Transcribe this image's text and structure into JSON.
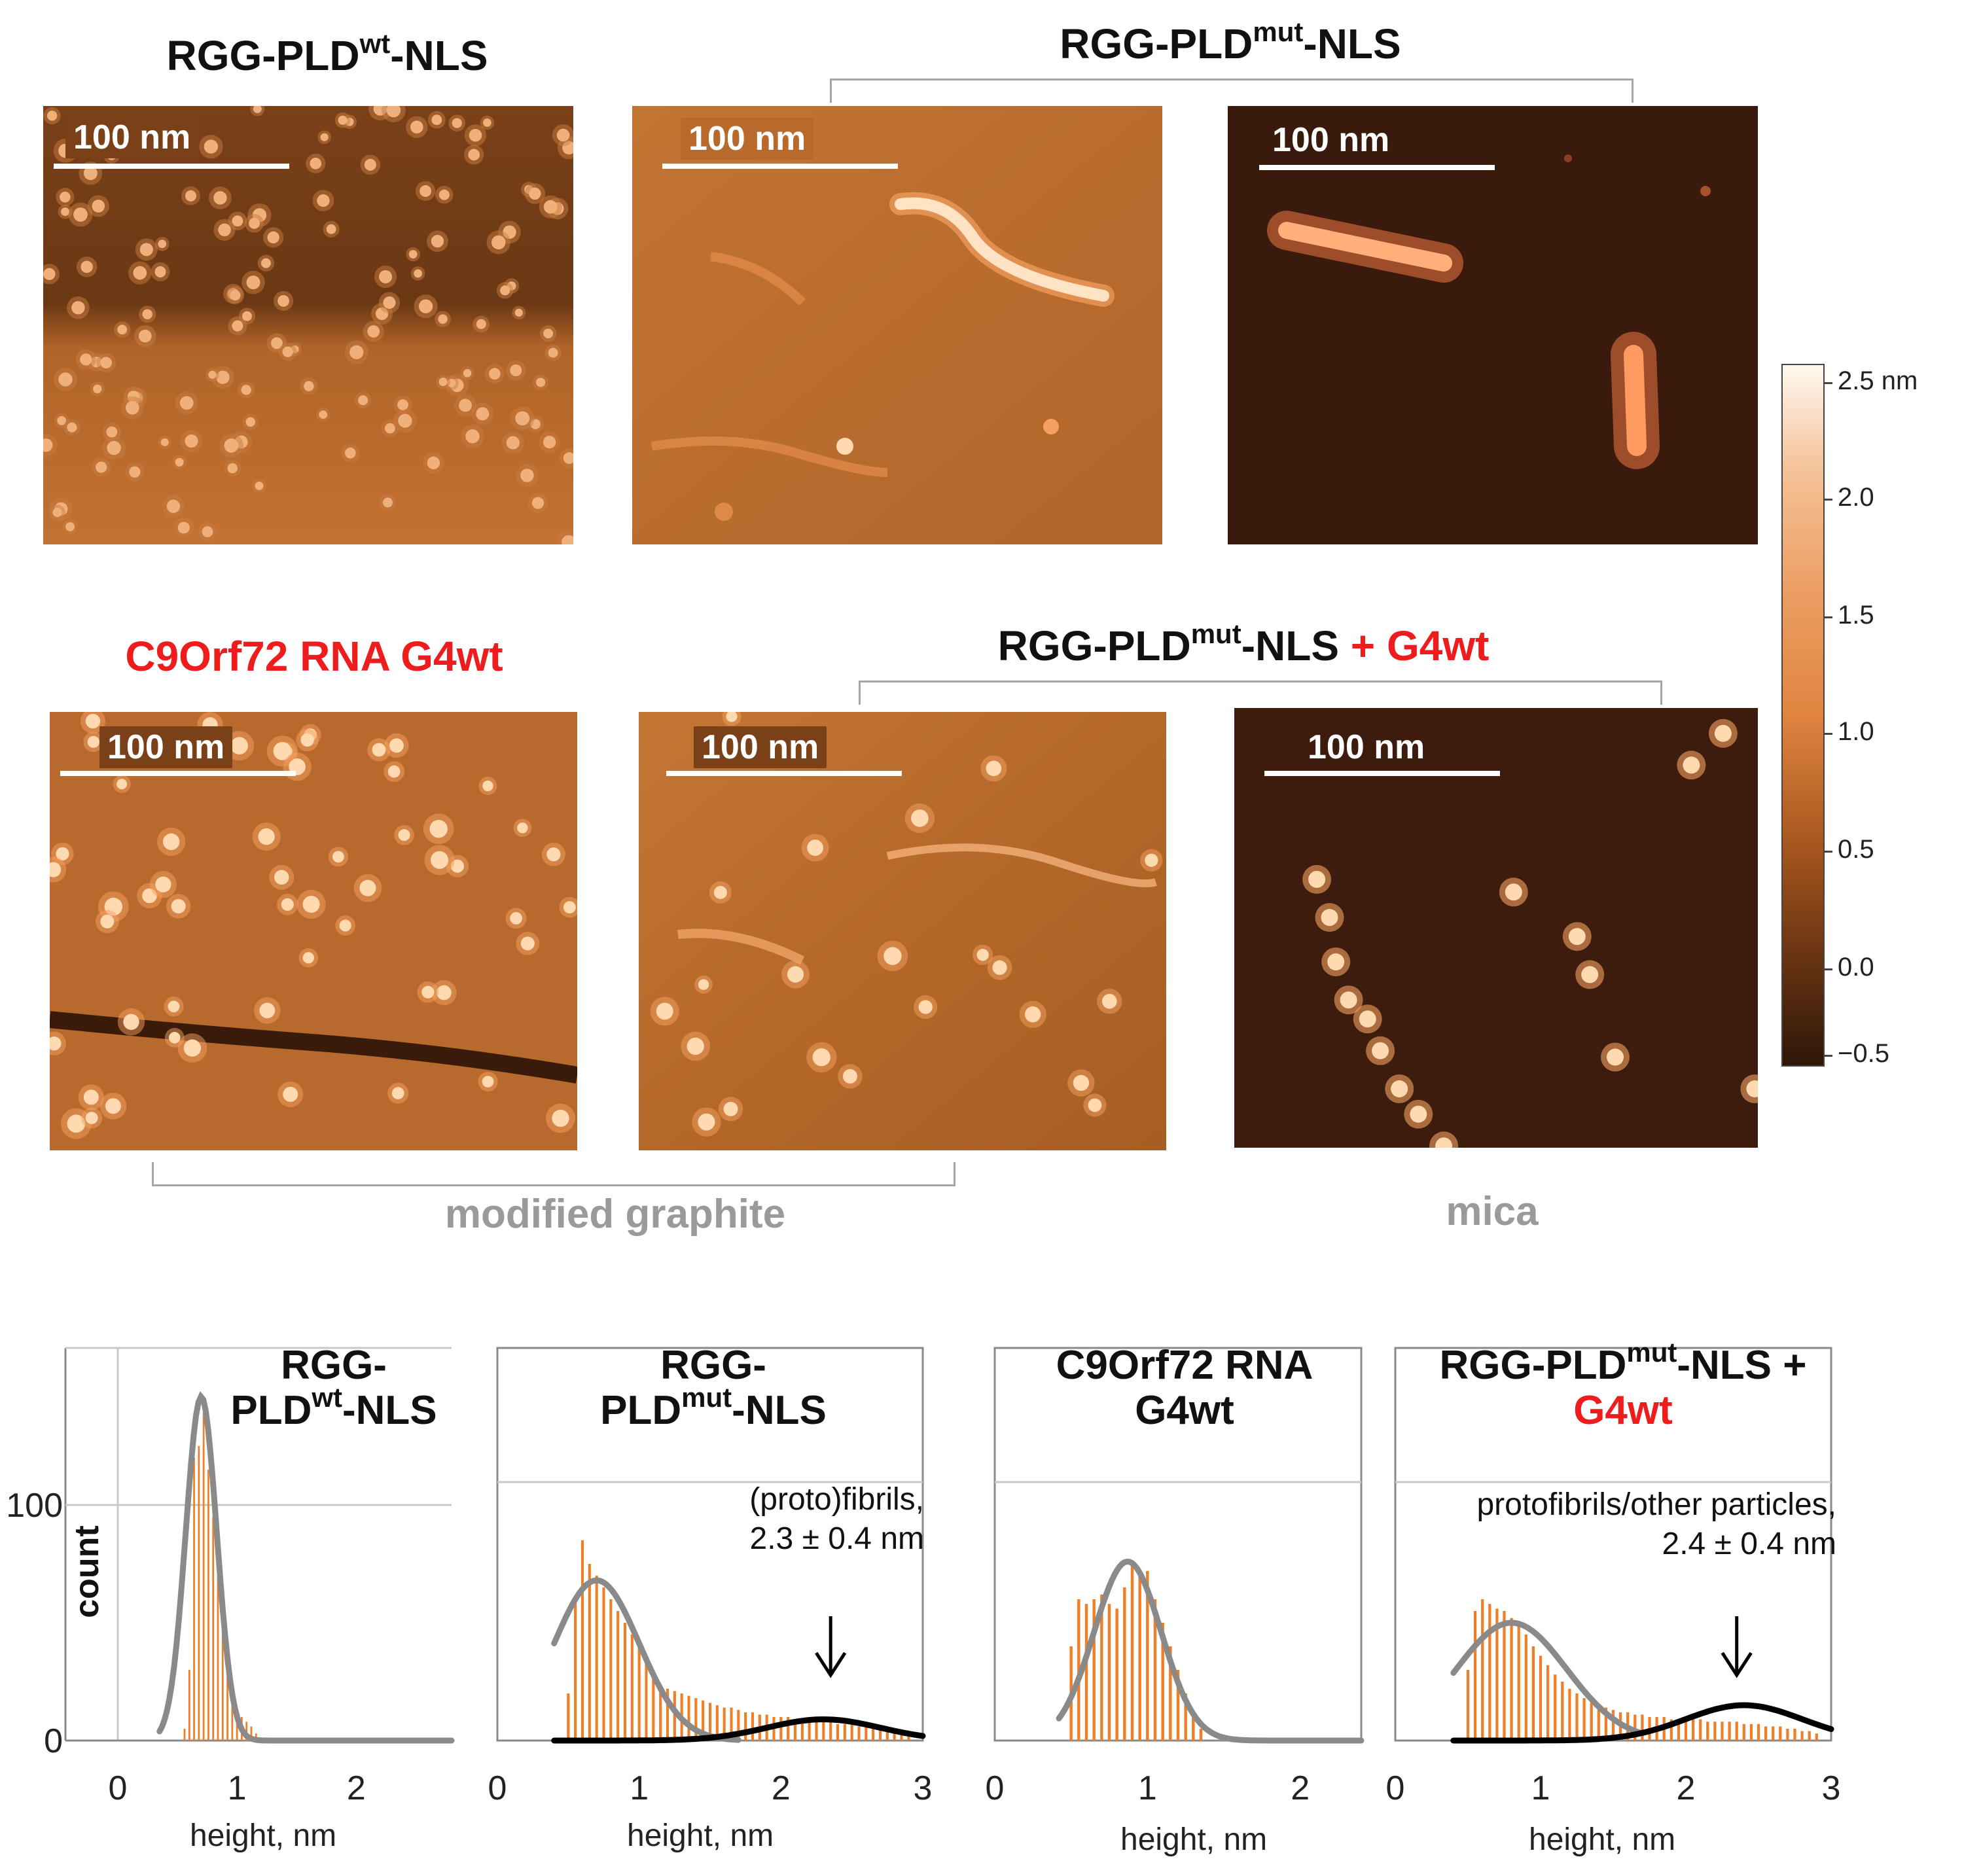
{
  "figure": {
    "row1": {
      "title_wt": {
        "main": "RGG-PLD",
        "sup": "wt",
        "tail": "-NLS"
      },
      "title_mut": {
        "main": "RGG-PLD",
        "sup": "mut",
        "tail": "-NLS"
      }
    },
    "row2": {
      "title_rna": "C9Orf72 RNA G4wt",
      "title_mix": {
        "main": "RGG-PLD",
        "sup": "mut",
        "tail": "-NLS",
        "plus": " + G4wt"
      }
    },
    "scale_bar_label": "100 nm",
    "surface_labels": {
      "graphite": "modified graphite",
      "mica": "mica"
    },
    "colorbar": {
      "ticks": [
        "2.5 nm",
        "2.0",
        "1.5",
        "1.0",
        "0.5",
        "0.0",
        "−0.5"
      ],
      "range_nm": [
        -0.6,
        2.5
      ],
      "colors": {
        "top": "#fff8f0",
        "mid": "#e8914a",
        "bottom": "#2e1608"
      }
    },
    "afm_colors": {
      "graphite_bg": "#b8692c",
      "graphite_dark": "#6b3a16",
      "mica_bg": "#3a1a0c",
      "feature": "#ffd9b0",
      "feature_glow": "#f4a060"
    }
  },
  "chart_data": [
    {
      "type": "bar",
      "title_parts": {
        "line1": "RGG-",
        "line2_main": "PLD",
        "line2_sup": "wt",
        "line2_tail": "-NLS"
      },
      "xlabel": "height, nm",
      "ylabel": "count",
      "xlim": [
        0,
        2.8
      ],
      "ylim": [
        0,
        150
      ],
      "xticks": [
        "0",
        "1",
        "2"
      ],
      "yticks": [
        "0",
        "100"
      ],
      "bin_width": 0.04,
      "histogram": {
        "x": [
          0.56,
          0.6,
          0.64,
          0.68,
          0.72,
          0.76,
          0.8,
          0.84,
          0.88,
          0.92,
          0.96,
          1.0,
          1.04,
          1.08,
          1.12,
          1.16
        ],
        "counts": [
          5,
          30,
          120,
          125,
          140,
          115,
          95,
          70,
          55,
          30,
          25,
          12,
          10,
          8,
          6,
          3
        ]
      },
      "fits": [
        {
          "color": "#8a8a8a",
          "amplitude": 146,
          "mean": 0.7,
          "sigma": 0.13,
          "xrange": [
            0.35,
            2.8
          ]
        }
      ],
      "colors": {
        "bars": "#f07e26",
        "fit": "#8a8a8a"
      }
    },
    {
      "type": "bar",
      "title_parts": {
        "line1": "RGG-",
        "line2_main": "PLD",
        "line2_sup": "mut",
        "line2_tail": "-NLS"
      },
      "annotation": {
        "line1": "(proto)fibrils,",
        "line2": "2.3 ± 0.4 nm"
      },
      "xlabel": "height, nm",
      "xlim": [
        0,
        3.0
      ],
      "ylim": [
        0,
        150
      ],
      "xticks": [
        "0",
        "1",
        "2",
        "3"
      ],
      "bin_width": 0.05,
      "histogram": {
        "x": [
          0.5,
          0.55,
          0.6,
          0.65,
          0.7,
          0.75,
          0.8,
          0.85,
          0.9,
          0.95,
          1.0,
          1.05,
          1.1,
          1.15,
          1.2,
          1.25,
          1.3,
          1.35,
          1.4,
          1.45,
          1.5,
          1.55,
          1.6,
          1.65,
          1.7,
          1.75,
          1.8,
          1.85,
          1.9,
          1.95,
          2.0,
          2.05,
          2.1,
          2.15,
          2.2,
          2.25,
          2.3,
          2.35,
          2.4,
          2.45,
          2.5,
          2.55,
          2.6,
          2.65,
          2.7,
          2.75,
          2.8,
          2.85,
          2.9
        ],
        "counts": [
          20,
          60,
          85,
          75,
          70,
          65,
          60,
          55,
          50,
          45,
          40,
          35,
          30,
          24,
          22,
          21,
          20,
          19,
          18,
          17,
          16,
          15,
          14,
          14,
          13,
          12,
          12,
          11,
          11,
          10,
          10,
          10,
          9,
          9,
          9,
          8,
          8,
          8,
          7,
          7,
          7,
          6,
          6,
          6,
          5,
          5,
          4,
          4,
          3
        ]
      },
      "fits": [
        {
          "color": "#8a8a8a",
          "amplitude": 68,
          "mean": 0.7,
          "sigma": 0.3,
          "xrange": [
            0.4,
            1.7
          ]
        },
        {
          "color": "#000000",
          "amplitude": 9,
          "mean": 2.3,
          "sigma": 0.4,
          "xrange": [
            0.4,
            3.0
          ]
        }
      ],
      "arrow_x": 2.35,
      "colors": {
        "bars": "#f07e26",
        "fit": "#8a8a8a",
        "fit2": "#000000"
      }
    },
    {
      "type": "bar",
      "title_parts": {
        "line1": "C9Orf72 RNA",
        "line2": "G4wt"
      },
      "xlabel": "height, nm",
      "xlim": [
        0,
        2.4
      ],
      "ylim": [
        0,
        150
      ],
      "xticks": [
        "0",
        "1",
        "2"
      ],
      "bin_width": 0.05,
      "histogram": {
        "x": [
          0.5,
          0.55,
          0.6,
          0.65,
          0.7,
          0.75,
          0.8,
          0.85,
          0.9,
          0.95,
          1.0,
          1.05,
          1.1,
          1.15,
          1.2,
          1.25,
          1.3,
          1.35
        ],
        "counts": [
          40,
          60,
          58,
          60,
          62,
          58,
          56,
          65,
          75,
          70,
          72,
          60,
          50,
          40,
          30,
          20,
          10,
          5
        ]
      },
      "fits": [
        {
          "color": "#8a8a8a",
          "amplitude": 76,
          "mean": 0.87,
          "sigma": 0.22,
          "xrange": [
            0.42,
            2.4
          ]
        }
      ],
      "colors": {
        "bars": "#f07e26",
        "fit": "#8a8a8a"
      }
    },
    {
      "type": "bar",
      "title_parts": {
        "line1_main": "RGG-PLD",
        "line1_sup": "mut",
        "line1_tail": "-NLS +",
        "line2": "G4wt"
      },
      "annotation": {
        "line1": "protofibrils/other particles,",
        "line2": "2.4 ± 0.4 nm"
      },
      "xlabel": "height, nm",
      "xlim": [
        0,
        3.0
      ],
      "ylim": [
        0,
        150
      ],
      "xticks": [
        "0",
        "1",
        "2",
        "3"
      ],
      "bin_width": 0.05,
      "histogram": {
        "x": [
          0.5,
          0.55,
          0.6,
          0.65,
          0.7,
          0.75,
          0.8,
          0.85,
          0.9,
          0.95,
          1.0,
          1.05,
          1.1,
          1.15,
          1.2,
          1.25,
          1.3,
          1.35,
          1.4,
          1.45,
          1.5,
          1.55,
          1.6,
          1.65,
          1.7,
          1.75,
          1.8,
          1.85,
          1.9,
          1.95,
          2.0,
          2.05,
          2.1,
          2.15,
          2.2,
          2.25,
          2.3,
          2.35,
          2.4,
          2.45,
          2.5,
          2.55,
          2.6,
          2.65,
          2.7,
          2.75,
          2.8,
          2.85,
          2.9
        ],
        "counts": [
          30,
          55,
          60,
          58,
          56,
          55,
          52,
          50,
          45,
          40,
          36,
          32,
          28,
          25,
          22,
          20,
          18,
          16,
          15,
          14,
          13,
          12,
          12,
          11,
          11,
          10,
          10,
          10,
          9,
          9,
          9,
          9,
          9,
          8,
          8,
          8,
          8,
          8,
          7,
          7,
          7,
          6,
          6,
          6,
          5,
          5,
          4,
          4,
          3
        ]
      },
      "fits": [
        {
          "color": "#8a8a8a",
          "amplitude": 50,
          "mean": 0.8,
          "sigma": 0.38,
          "xrange": [
            0.4,
            1.7
          ]
        },
        {
          "color": "#000000",
          "amplitude": 15,
          "mean": 2.4,
          "sigma": 0.4,
          "xrange": [
            0.4,
            3.0
          ]
        }
      ],
      "arrow_x": 2.35,
      "colors": {
        "bars": "#f07e26",
        "fit": "#8a8a8a",
        "fit2": "#000000"
      }
    }
  ]
}
